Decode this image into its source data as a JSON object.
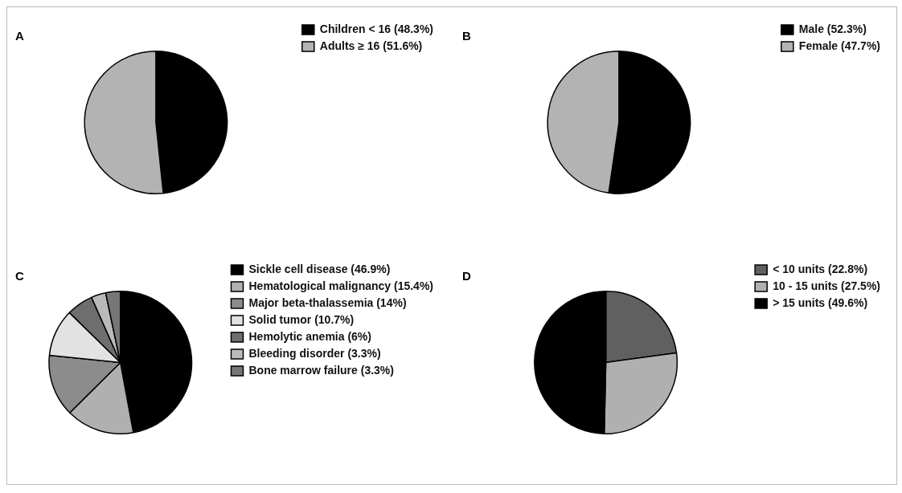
{
  "chart_data": [
    {
      "type": "pie",
      "title": "A",
      "categories": [
        "Children < 16 (48.3%)",
        "Adults ≥ 16 (51.6%)"
      ],
      "values": [
        48.3,
        51.6
      ],
      "colors": [
        "#000000",
        "#b3b3b3"
      ],
      "legend": "right"
    },
    {
      "type": "pie",
      "title": "B",
      "categories": [
        "Male (52.3%)",
        "Female (47.7%)"
      ],
      "values": [
        52.3,
        47.7
      ],
      "colors": [
        "#000000",
        "#b3b3b3"
      ],
      "legend": "right"
    },
    {
      "type": "pie",
      "title": "C",
      "categories": [
        "Sickle cell disease (46.9%)",
        "Hematological malignancy (15.4%)",
        "Major beta-thalassemia (14%)",
        "Solid tumor (10.7%)",
        "Hemolytic anemia (6%)",
        "Bleeding disorder (3.3%)",
        "Bone marrow failure (3.3%)"
      ],
      "values": [
        46.9,
        15.4,
        14,
        10.7,
        6,
        3.3,
        3.3
      ],
      "colors": [
        "#000000",
        "#b0b0b0",
        "#8c8c8c",
        "#e2e2e2",
        "#6e6e6e",
        "#bababa",
        "#777777"
      ],
      "legend": "right"
    },
    {
      "type": "pie",
      "title": "D",
      "categories": [
        "< 10 units (22.8%)",
        "10 - 15 units (27.5%)",
        "> 15 units (49.6%)"
      ],
      "values": [
        22.8,
        27.5,
        49.6
      ],
      "colors": [
        "#606060",
        "#b0b0b0",
        "#000000"
      ],
      "legend": "right"
    }
  ]
}
